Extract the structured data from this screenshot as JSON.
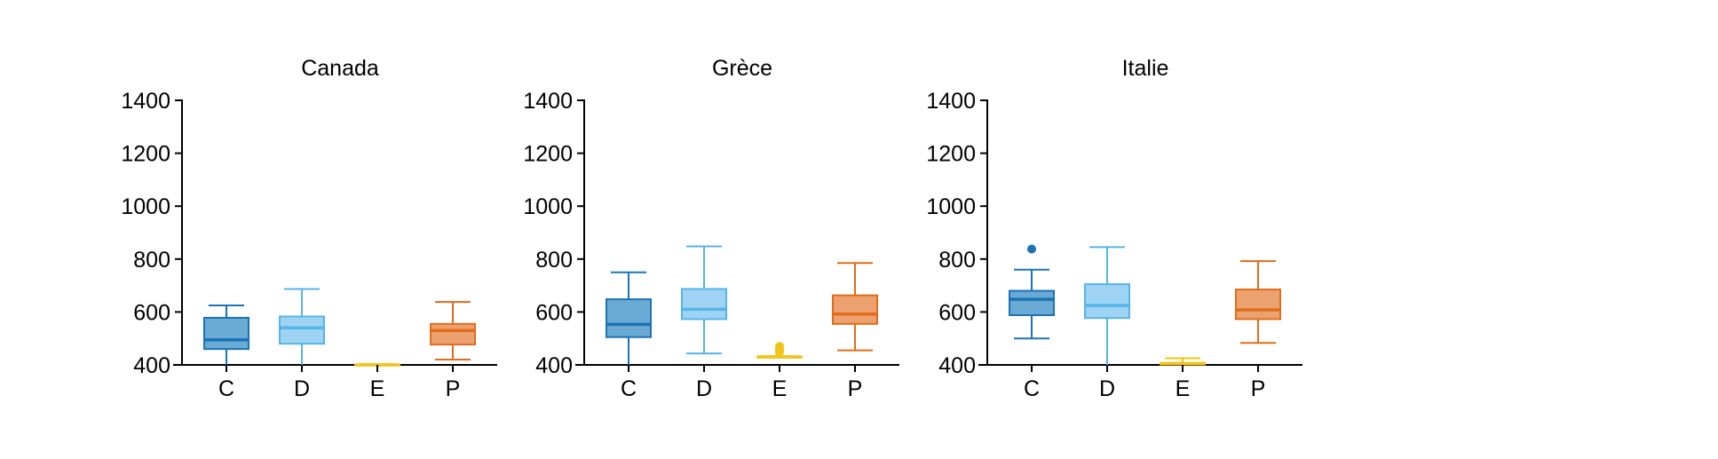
{
  "chart_data": [
    {
      "type": "box",
      "title": "Canada",
      "categories": [
        "C",
        "D",
        "E",
        "P"
      ],
      "yticks": [
        "400",
        "600",
        "800",
        "1000",
        "1200",
        "1400"
      ],
      "ylim": [
        400,
        1400
      ],
      "grid": false,
      "boxes": [
        {
          "min": 385,
          "q1": 460,
          "median": 495,
          "q3": 578,
          "max": 625,
          "outliers": [],
          "color": "#1a73b5",
          "fill": "#6aaad5"
        },
        {
          "min": 380,
          "q1": 480,
          "median": 540,
          "q3": 583,
          "max": 687,
          "outliers": [],
          "color": "#55b4e9",
          "fill": "#9fd3f3"
        },
        {
          "min": 398,
          "q1": 399,
          "median": 400,
          "q3": 401,
          "max": 403,
          "outliers": [],
          "color": "#f0c419",
          "fill": "#f6dc7a"
        },
        {
          "min": 420,
          "q1": 477,
          "median": 530,
          "q3": 555,
          "max": 638,
          "outliers": [],
          "color": "#e06c1c",
          "fill": "#eca26f"
        }
      ]
    },
    {
      "type": "box",
      "title": "Grèce",
      "categories": [
        "C",
        "D",
        "E",
        "P"
      ],
      "yticks": [
        "400",
        "600",
        "800",
        "1000",
        "1200",
        "1400"
      ],
      "ylim": [
        400,
        1400
      ],
      "grid": false,
      "boxes": [
        {
          "min": 400,
          "q1": 505,
          "median": 553,
          "q3": 648,
          "max": 750,
          "outliers": [],
          "color": "#1a73b5",
          "fill": "#6aaad5"
        },
        {
          "min": 443,
          "q1": 573,
          "median": 610,
          "q3": 687,
          "max": 848,
          "outliers": [],
          "color": "#55b4e9",
          "fill": "#9fd3f3"
        },
        {
          "min": 428,
          "q1": 429,
          "median": 430,
          "q3": 431,
          "max": 433,
          "outliers": [
            448,
            455,
            462,
            470
          ],
          "color": "#f0c419",
          "fill": "#f6dc7a"
        },
        {
          "min": 455,
          "q1": 555,
          "median": 592,
          "q3": 663,
          "max": 785,
          "outliers": [],
          "color": "#e06c1c",
          "fill": "#eca26f"
        }
      ]
    },
    {
      "type": "box",
      "title": "Italie",
      "categories": [
        "C",
        "D",
        "E",
        "P"
      ],
      "yticks": [
        "400",
        "600",
        "800",
        "1000",
        "1200",
        "1400"
      ],
      "ylim": [
        400,
        1400
      ],
      "grid": false,
      "boxes": [
        {
          "min": 500,
          "q1": 588,
          "median": 648,
          "q3": 680,
          "max": 760,
          "outliers": [
            838
          ],
          "color": "#1a73b5",
          "fill": "#6aaad5"
        },
        {
          "min": 385,
          "q1": 577,
          "median": 625,
          "q3": 705,
          "max": 845,
          "outliers": [],
          "color": "#55b4e9",
          "fill": "#9fd3f3"
        },
        {
          "min": 400,
          "q1": 402,
          "median": 405,
          "q3": 408,
          "max": 425,
          "outliers": [],
          "color": "#f0c419",
          "fill": "#f6dc7a"
        },
        {
          "min": 483,
          "q1": 573,
          "median": 608,
          "q3": 685,
          "max": 792,
          "outliers": [],
          "color": "#e06c1c",
          "fill": "#eca26f"
        }
      ]
    }
  ]
}
